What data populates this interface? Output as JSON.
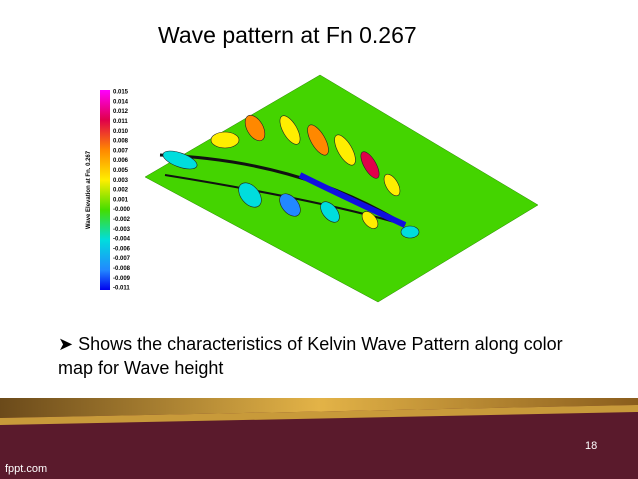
{
  "slide": {
    "title": "Wave pattern at Fn 0.267",
    "figure": {
      "colorbar_title": "Wave Elevation at Fn. 0.267",
      "colorbar_labels": [
        "0.015",
        "0.014",
        "0.012",
        "0.011",
        "0.010",
        "0.008",
        "0.007",
        "0.006",
        "0.005",
        "0.003",
        "0.002",
        "0.001",
        "-0.000",
        "-0.002",
        "-0.003",
        "-0.004",
        "-0.006",
        "-0.007",
        "-0.008",
        "-0.009",
        "-0.011"
      ]
    },
    "bullet": "Shows the characteristics of Kelvin Wave Pattern along color map for Wave height",
    "page_number": "18",
    "footer": "fppt.com"
  }
}
